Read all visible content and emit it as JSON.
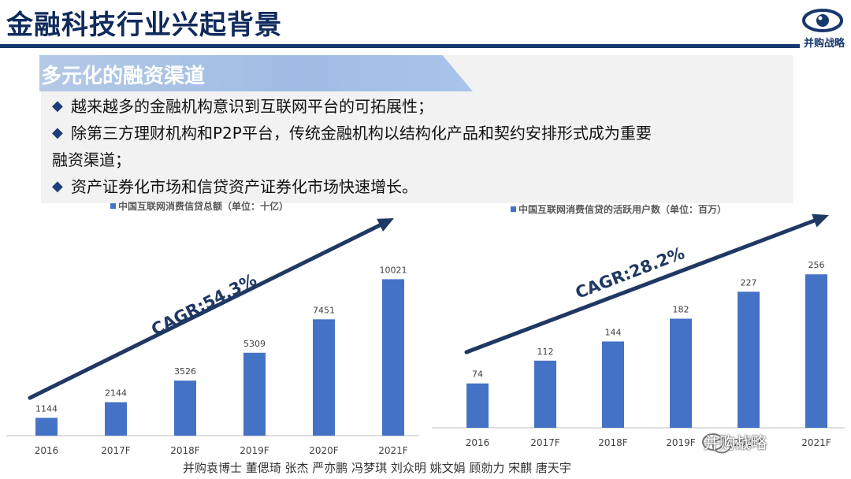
{
  "header": {
    "title": "金融科技行业兴起背景",
    "logo_text": "并购战略"
  },
  "section": {
    "title": "多元化的融资渠道",
    "bullets": [
      "越来越多的金融机构意识到互联网平台的可拓展性；",
      "除第三方理财机构和P2P平台，传统金融机构以结构化产品和契约安排形式成为重要",
      "融资渠道；",
      "资产证券化市场和信贷资产证券化市场快速增长。"
    ]
  },
  "colors": {
    "bar": "#4472c4",
    "arrow": "#1f3864",
    "title": "#0f2a5c"
  },
  "chart_data": [
    {
      "type": "bar",
      "title": "",
      "legend": "中国互联网消费信贷总额（单位：十亿）",
      "categories": [
        "2016",
        "2017F",
        "2018F",
        "2019F",
        "2020F",
        "2021F"
      ],
      "values": [
        1144,
        2144,
        3526,
        5309,
        7451,
        10021
      ],
      "annotation": "CAGR:54.3%",
      "ylim": [
        0,
        11000
      ],
      "grid": false
    },
    {
      "type": "bar",
      "title": "",
      "legend": "中国互联网消费信贷的活跃用户数（单位：百万）",
      "categories": [
        "2016",
        "2017F",
        "2018F",
        "2019F",
        "2020F",
        "2021F"
      ],
      "values": [
        74,
        112,
        144,
        182,
        227,
        256
      ],
      "annotation": "CAGR:28.2%",
      "ylim": [
        0,
        276
      ],
      "grid": false
    }
  ],
  "footer": "并购袁博士 董偲琦 张杰 严亦鹏 冯梦琪 刘众明 姚文娟 顾勍力 宋麒 唐天宇",
  "watermark": "并购战略"
}
